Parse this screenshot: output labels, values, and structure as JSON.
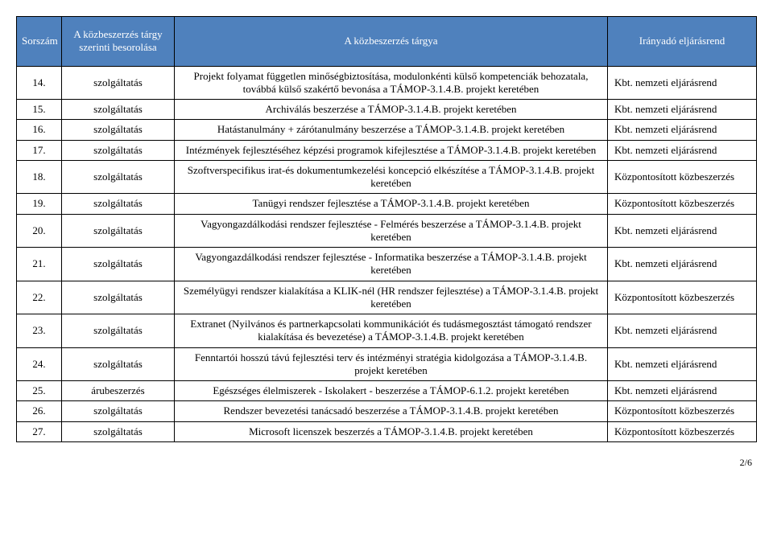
{
  "header": {
    "col0": "Sorszám",
    "col1": "A közbeszerzés tárgy szerinti besorolása",
    "col2": "A közbeszerzés tárgya",
    "col3": "Irányadó eljárásrend"
  },
  "colors": {
    "header_bg": "#4f81bd",
    "header_fg": "#ffffff",
    "border": "#000000",
    "page_bg": "#ffffff",
    "text": "#000000"
  },
  "rows": [
    {
      "num": "14.",
      "cls": "szolgáltatás",
      "desc": "Projekt folyamat független minőségbiztosítása, modulonkénti külső kompetenciák behozatala, továbbá külső szakértő bevonása a TÁMOP-3.1.4.B. projekt keretében",
      "proc": "Kbt. nemzeti eljárásrend"
    },
    {
      "num": "15.",
      "cls": "szolgáltatás",
      "desc": "Archiválás beszerzése a TÁMOP-3.1.4.B. projekt keretében",
      "proc": "Kbt. nemzeti eljárásrend"
    },
    {
      "num": "16.",
      "cls": "szolgáltatás",
      "desc": "Hatástanulmány + zárótanulmány beszerzése a TÁMOP-3.1.4.B. projekt keretében",
      "proc": "Kbt. nemzeti eljárásrend"
    },
    {
      "num": "17.",
      "cls": "szolgáltatás",
      "desc": "Intézmények fejlesztéséhez képzési programok kifejlesztése a TÁMOP-3.1.4.B. projekt keretében",
      "proc": "Kbt. nemzeti eljárásrend"
    },
    {
      "num": "18.",
      "cls": "szolgáltatás",
      "desc": "Szoftverspecifikus irat-és dokumentumkezelési koncepció elkészítése a TÁMOP-3.1.4.B. projekt keretében",
      "proc": "Központosított közbeszerzés"
    },
    {
      "num": "19.",
      "cls": "szolgáltatás",
      "desc": "Tanügyi rendszer fejlesztése a TÁMOP-3.1.4.B. projekt keretében",
      "proc": "Központosított közbeszerzés"
    },
    {
      "num": "20.",
      "cls": "szolgáltatás",
      "desc": "Vagyongazdálkodási rendszer fejlesztése - Felmérés beszerzése a TÁMOP-3.1.4.B. projekt keretében",
      "proc": "Kbt. nemzeti eljárásrend"
    },
    {
      "num": "21.",
      "cls": "szolgáltatás",
      "desc": "Vagyongazdálkodási rendszer fejlesztése - Informatika beszerzése a TÁMOP-3.1.4.B. projekt keretében",
      "proc": "Kbt. nemzeti eljárásrend"
    },
    {
      "num": "22.",
      "cls": "szolgáltatás",
      "desc": "Személyügyi rendszer kialakítása a KLIK-nél (HR rendszer fejlesztése) a TÁMOP-3.1.4.B. projekt keretében",
      "proc": "Központosított közbeszerzés"
    },
    {
      "num": "23.",
      "cls": "szolgáltatás",
      "desc": "Extranet (Nyilvános és partnerkapcsolati kommunikációt és tudásmegosztást támogató rendszer kialakítása és bevezetése) a TÁMOP-3.1.4.B. projekt keretében",
      "proc": "Kbt. nemzeti eljárásrend"
    },
    {
      "num": "24.",
      "cls": "szolgáltatás",
      "desc": "Fenntartói hosszú távú fejlesztési terv és intézményi stratégia kidolgozása a TÁMOP-3.1.4.B. projekt keretében",
      "proc": "Kbt. nemzeti eljárásrend"
    },
    {
      "num": "25.",
      "cls": "árubeszerzés",
      "desc": "Egészséges élelmiszerek - Iskolakert - beszerzése a TÁMOP-6.1.2. projekt keretében",
      "proc": "Kbt. nemzeti eljárásrend"
    },
    {
      "num": "26.",
      "cls": "szolgáltatás",
      "desc": "Rendszer bevezetési tanácsadó beszerzése a TÁMOP-3.1.4.B. projekt keretében",
      "proc": "Központosított közbeszerzés"
    },
    {
      "num": "27.",
      "cls": "szolgáltatás",
      "desc": "Microsoft licenszek beszerzés a TÁMOP-3.1.4.B. projekt keretében",
      "proc": "Központosított közbeszerzés"
    }
  ],
  "page_number": "2/6"
}
